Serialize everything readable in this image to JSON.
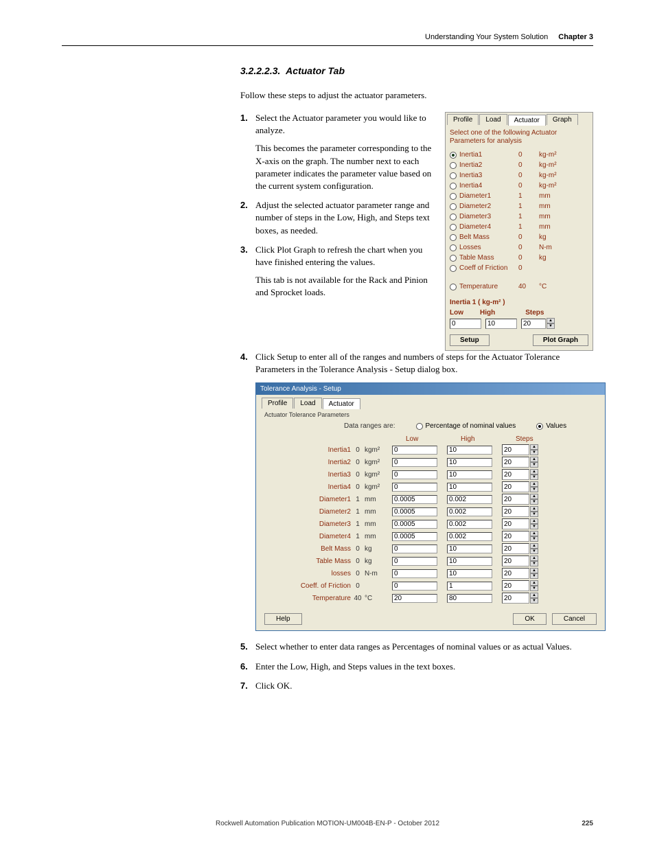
{
  "header": {
    "title": "Understanding Your System Solution",
    "chapter": "Chapter 3"
  },
  "section": {
    "number": "3.2.2.2.3.",
    "title": "Actuator Tab"
  },
  "intro": "Follow these steps to adjust the actuator parameters.",
  "steps": {
    "s1": "Select the Actuator parameter you would like to analyze.",
    "s1_detail": "This becomes the parameter corresponding to the X-axis on the graph. The number next to each parameter indicates the parameter value based on the current system configuration.",
    "s2": "Adjust the selected actuator parameter range and number of steps in the Low, High, and Steps text boxes, as needed.",
    "s3": "Click Plot Graph to refresh the chart when you have finished entering the values.",
    "s3_detail": "This tab is not available for the Rack and Pinion and Sprocket loads.",
    "s4": "Click Setup to enter all of the ranges and numbers of steps for the Actuator Tolerance Parameters in the Tolerance Analysis - Setup dialog box.",
    "s5": "Select whether to enter data ranges as Percentages of nominal values or as actual Values.",
    "s6": "Enter the Low, High, and Steps values in the text boxes.",
    "s7": "Click OK."
  },
  "panel": {
    "tabs": {
      "profile": "Profile",
      "load": "Load",
      "actuator": "Actuator",
      "graph": "Graph"
    },
    "instruction": "Select one of the following Actuator Parameters for analysis",
    "params": [
      {
        "name": "Inertia1",
        "value": "0",
        "unit": "kg-m²",
        "selected": true
      },
      {
        "name": "Inertia2",
        "value": "0",
        "unit": "kg-m²",
        "selected": false
      },
      {
        "name": "Inertia3",
        "value": "0",
        "unit": "kg-m²",
        "selected": false
      },
      {
        "name": "Inertia4",
        "value": "0",
        "unit": "kg-m²",
        "selected": false
      },
      {
        "name": "Diameter1",
        "value": "1",
        "unit": "mm",
        "selected": false
      },
      {
        "name": "Diameter2",
        "value": "1",
        "unit": "mm",
        "selected": false
      },
      {
        "name": "Diameter3",
        "value": "1",
        "unit": "mm",
        "selected": false
      },
      {
        "name": "Diameter4",
        "value": "1",
        "unit": "mm",
        "selected": false
      },
      {
        "name": "Belt Mass",
        "value": "0",
        "unit": "kg",
        "selected": false
      },
      {
        "name": "Losses",
        "value": "0",
        "unit": "N-m",
        "selected": false
      },
      {
        "name": "Table Mass",
        "value": "0",
        "unit": "kg",
        "selected": false
      },
      {
        "name": "Coeff of Friction",
        "value": "0",
        "unit": "",
        "selected": false
      },
      {
        "name": "Temperature",
        "value": "40",
        "unit": "°C",
        "selected": false
      }
    ],
    "group_title": "Inertia 1 ( kg-m² )",
    "labels": {
      "low": "Low",
      "high": "High",
      "steps": "Steps"
    },
    "values": {
      "low": "0",
      "high": "10",
      "steps": "20"
    },
    "buttons": {
      "setup": "Setup",
      "plot": "Plot Graph"
    }
  },
  "dialog": {
    "title": "Tolerance Analysis - Setup",
    "tabs": {
      "profile": "Profile",
      "load": "Load",
      "actuator": "Actuator"
    },
    "fieldset": "Actuator Tolerance Parameters",
    "range_label": "Data ranges are:",
    "range_opts": {
      "perc": "Percentage of nominal values",
      "vals": "Values"
    },
    "headers": {
      "low": "Low",
      "high": "High",
      "steps": "Steps"
    },
    "rows": [
      {
        "name": "Inertia1",
        "val": "0",
        "unit": "kgm²",
        "low": "0",
        "high": "10",
        "steps": "20"
      },
      {
        "name": "Inertia2",
        "val": "0",
        "unit": "kgm²",
        "low": "0",
        "high": "10",
        "steps": "20"
      },
      {
        "name": "Inertia3",
        "val": "0",
        "unit": "kgm²",
        "low": "0",
        "high": "10",
        "steps": "20"
      },
      {
        "name": "Inertia4",
        "val": "0",
        "unit": "kgm²",
        "low": "0",
        "high": "10",
        "steps": "20"
      },
      {
        "name": "Diameter1",
        "val": "1",
        "unit": "mm",
        "low": "0.0005",
        "high": "0.002",
        "steps": "20"
      },
      {
        "name": "Diameter2",
        "val": "1",
        "unit": "mm",
        "low": "0.0005",
        "high": "0.002",
        "steps": "20"
      },
      {
        "name": "Diameter3",
        "val": "1",
        "unit": "mm",
        "low": "0.0005",
        "high": "0.002",
        "steps": "20"
      },
      {
        "name": "Diameter4",
        "val": "1",
        "unit": "mm",
        "low": "0.0005",
        "high": "0.002",
        "steps": "20"
      },
      {
        "name": "Belt Mass",
        "val": "0",
        "unit": "kg",
        "low": "0",
        "high": "10",
        "steps": "20"
      },
      {
        "name": "Table Mass",
        "val": "0",
        "unit": "kg",
        "low": "0",
        "high": "10",
        "steps": "20"
      },
      {
        "name": "losses",
        "val": "0",
        "unit": "N-m",
        "low": "0",
        "high": "10",
        "steps": "20"
      },
      {
        "name": "Coeff. of Friction",
        "val": "0",
        "unit": "",
        "low": "0",
        "high": "1",
        "steps": "20"
      },
      {
        "name": "Temperature",
        "val": "40",
        "unit": "°C",
        "low": "20",
        "high": "80",
        "steps": "20"
      }
    ],
    "buttons": {
      "help": "Help",
      "ok": "OK",
      "cancel": "Cancel"
    }
  },
  "footer": {
    "text": "Rockwell Automation Publication MOTION-UM004B-EN-P - October 2012",
    "page": "225"
  }
}
